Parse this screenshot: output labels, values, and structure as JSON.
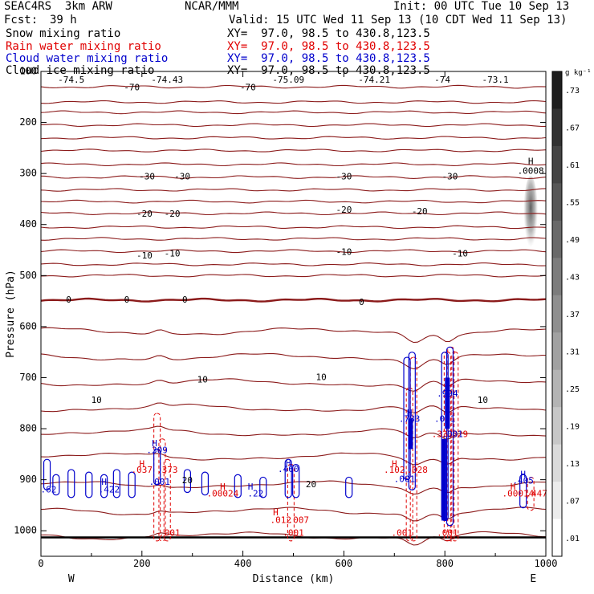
{
  "header": {
    "model": "SEAC4RS  3km ARW",
    "center": "NCAR/MMM",
    "init": "Init: 00 UTC Tue 10 Sep 13",
    "fcst_label": "Fcst:",
    "fcst_value": "39 h",
    "valid": "Valid: 15 UTC Wed 11 Sep 13 (10 CDT Wed 11 Sep 13)",
    "fields": [
      {
        "name": "Snow mixing ratio",
        "xy": "XY=  97.0, 98.5 to 430.8,123.5",
        "color": "#000000"
      },
      {
        "name": "Rain water mixing ratio",
        "xy": "XY=  97.0, 98.5 to 430.8,123.5",
        "color": "#e00000"
      },
      {
        "name": "Cloud water mixing ratio",
        "xy": "XY=  97.0, 98.5 to 430.8,123.5",
        "color": "#0000cc"
      },
      {
        "name": "Cloud ice mixing ratio",
        "xy": "XY=  97.0, 98.5 to 430.8,123.5",
        "color": "#000000"
      }
    ]
  },
  "chart_data": {
    "type": "line",
    "xlabel": "Distance (km)",
    "ylabel": "Pressure (hPa)",
    "xlim": [
      0,
      1000
    ],
    "ylim": [
      1050,
      100
    ],
    "xticks": [
      0,
      200,
      400,
      600,
      800,
      1000
    ],
    "yticks": [
      100,
      200,
      300,
      400,
      500,
      600,
      700,
      800,
      900,
      1000
    ],
    "x_endpoints": {
      "left": "W",
      "right": "E"
    },
    "colorbar": {
      "unit": "g kg⁻¹",
      "labels": [
        ".73",
        ".67",
        ".61",
        ".55",
        ".49",
        ".43",
        ".37",
        ".31",
        ".25",
        ".19",
        ".13",
        ".07",
        ".01"
      ]
    },
    "temperature_contours": {
      "color": "#8b1a1a",
      "pressures": [
        130,
        160,
        180,
        205,
        230,
        255,
        282,
        307,
        332,
        355,
        378,
        405,
        428,
        452,
        478,
        500,
        548,
        610,
        660,
        710,
        760,
        808,
        855,
        910,
        962,
        1010
      ],
      "bold_zero_pressure": 548,
      "labels": [
        {
          "text": "-74.5",
          "x": 60,
          "p": 117
        },
        {
          "text": "-74.43",
          "x": 250,
          "p": 117
        },
        {
          "text": "-75.09",
          "x": 490,
          "p": 117
        },
        {
          "text": "-74.21",
          "x": 660,
          "p": 117
        },
        {
          "text": "-74",
          "x": 795,
          "p": 117
        },
        {
          "text": "-73.1",
          "x": 900,
          "p": 117
        },
        {
          "text": "-70",
          "x": 180,
          "p": 132
        },
        {
          "text": "-70",
          "x": 410,
          "p": 132
        },
        {
          "text": "-30",
          "x": 210,
          "p": 307
        },
        {
          "text": "-30",
          "x": 280,
          "p": 307
        },
        {
          "text": "-30",
          "x": 600,
          "p": 307
        },
        {
          "text": "-30",
          "x": 810,
          "p": 307
        },
        {
          "text": "-20",
          "x": 205,
          "p": 380
        },
        {
          "text": "-20",
          "x": 260,
          "p": 380
        },
        {
          "text": "-20",
          "x": 600,
          "p": 372
        },
        {
          "text": "-20",
          "x": 750,
          "p": 375
        },
        {
          "text": "-10",
          "x": 205,
          "p": 462
        },
        {
          "text": "-10",
          "x": 260,
          "p": 458
        },
        {
          "text": "-10",
          "x": 600,
          "p": 455
        },
        {
          "text": "-10",
          "x": 830,
          "p": 458
        },
        {
          "text": "0",
          "x": 55,
          "p": 548
        },
        {
          "text": "0",
          "x": 170,
          "p": 548
        },
        {
          "text": "0",
          "x": 285,
          "p": 548
        },
        {
          "text": "0",
          "x": 635,
          "p": 553
        },
        {
          "text": "10",
          "x": 110,
          "p": 745
        },
        {
          "text": "10",
          "x": 320,
          "p": 705
        },
        {
          "text": "10",
          "x": 555,
          "p": 700
        },
        {
          "text": "10",
          "x": 875,
          "p": 745
        },
        {
          "text": "20",
          "x": 290,
          "p": 902
        },
        {
          "text": "20",
          "x": 535,
          "p": 910
        }
      ]
    },
    "snow_shading": {
      "x": 970,
      "p_top": 305,
      "p_bottom": 460,
      "max_label": "H",
      "max_value": ".0008"
    },
    "rain_water": {
      "color": "#e00000",
      "column_labels": [
        {
          "text": "H",
          "x": 200,
          "p": 870
        },
        {
          "text": ".037",
          "x": 200,
          "p": 882
        },
        {
          "text": ".373",
          "x": 250,
          "p": 882
        },
        {
          "text": ".001",
          "x": 255,
          "p": 1005
        },
        {
          "text": "H",
          "x": 360,
          "p": 915
        },
        {
          "text": ".00024",
          "x": 360,
          "p": 928
        },
        {
          "text": "H",
          "x": 465,
          "p": 965
        },
        {
          "text": ".012",
          "x": 475,
          "p": 980
        },
        {
          "text": ".007",
          "x": 510,
          "p": 980
        },
        {
          "text": ".001",
          "x": 500,
          "p": 1005
        },
        {
          "text": "H",
          "x": 700,
          "p": 870
        },
        {
          "text": ".102",
          "x": 700,
          "p": 882
        },
        {
          "text": ".028",
          "x": 745,
          "p": 882
        },
        {
          "text": ".001",
          "x": 715,
          "p": 1005
        },
        {
          "text": ".337",
          "x": 795,
          "p": 812
        },
        {
          "text": ".329",
          "x": 825,
          "p": 812
        },
        {
          "text": ".001",
          "x": 805,
          "p": 1005
        },
        {
          "text": "H",
          "x": 935,
          "p": 915
        },
        {
          "text": ".00014",
          "x": 945,
          "p": 928
        },
        {
          "text": ".447",
          "x": 982,
          "p": 928
        }
      ]
    },
    "cloud_water": {
      "color": "#0000cc",
      "column_labels": [
        {
          "text": "H",
          "x": 225,
          "p": 830
        },
        {
          "text": ".309",
          "x": 230,
          "p": 843
        },
        {
          "text": ".001",
          "x": 235,
          "p": 905
        },
        {
          "text": ".62",
          "x": 15,
          "p": 920
        },
        {
          "text": "H",
          "x": 125,
          "p": 905
        },
        {
          "text": ".422",
          "x": 135,
          "p": 920
        },
        {
          "text": "H",
          "x": 415,
          "p": 915
        },
        {
          "text": ".22",
          "x": 425,
          "p": 928
        },
        {
          "text": "H",
          "x": 490,
          "p": 868
        },
        {
          "text": ".460",
          "x": 490,
          "p": 880
        },
        {
          "text": "H",
          "x": 730,
          "p": 770
        },
        {
          "text": ".783",
          "x": 730,
          "p": 782
        },
        {
          "text": ".001",
          "x": 720,
          "p": 900
        },
        {
          "text": "H",
          "x": 805,
          "p": 720
        },
        {
          "text": ".994",
          "x": 805,
          "p": 732
        },
        {
          "text": ".001",
          "x": 800,
          "p": 782
        },
        {
          "text": ".001",
          "x": 815,
          "p": 812
        },
        {
          "text": "H",
          "x": 955,
          "p": 890
        },
        {
          "text": ".405",
          "x": 955,
          "p": 903
        }
      ]
    }
  }
}
